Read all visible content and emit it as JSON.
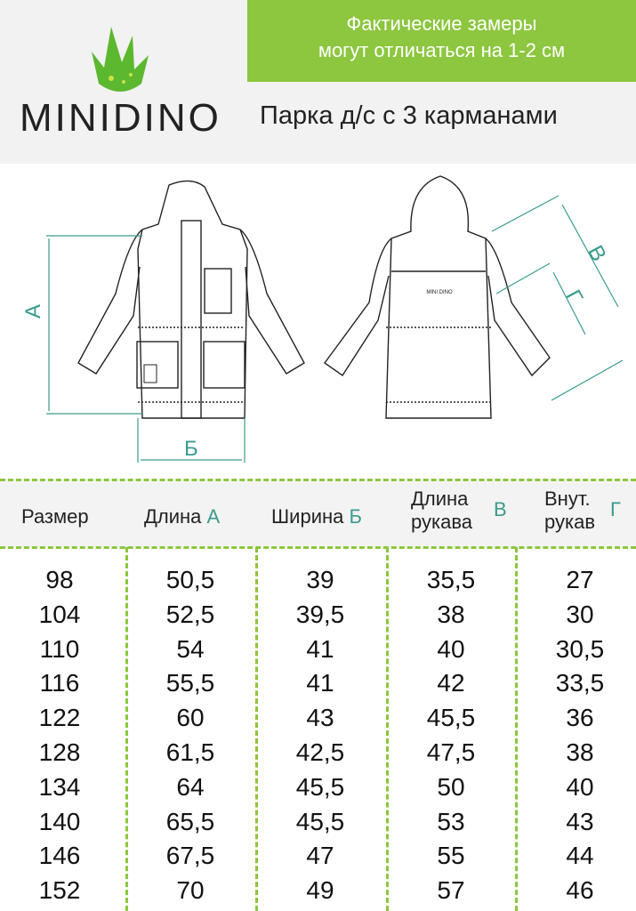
{
  "header": {
    "brand": "MINIDINO",
    "note_line1": "Фактические замеры",
    "note_line2": "могут отличаться на 1-2 см",
    "title": "Парка д/с с 3 карманами",
    "colors": {
      "green": "#8dc63f",
      "accent": "#3a9b8c"
    }
  },
  "diagram": {
    "label_a": "А",
    "label_b": "Б",
    "label_v": "В",
    "label_g": "Г",
    "patch_text": "MINI DINO"
  },
  "table": {
    "headers": [
      {
        "text": "Размер",
        "letter": ""
      },
      {
        "text": "Длина",
        "letter": "А"
      },
      {
        "text": "Ширина",
        "letter": "Б"
      },
      {
        "text1": "Длина",
        "text2": "рукава",
        "letter": "В"
      },
      {
        "text1": "Внут.",
        "text2": "рукав",
        "letter": "Г"
      }
    ],
    "rows": [
      [
        "98",
        "50,5",
        "39",
        "35,5",
        "27"
      ],
      [
        "104",
        "52,5",
        "39,5",
        "38",
        "30"
      ],
      [
        "110",
        "54",
        "41",
        "40",
        "30,5"
      ],
      [
        "116",
        "55,5",
        "41",
        "42",
        "33,5"
      ],
      [
        "122",
        "60",
        "43",
        "45,5",
        "36"
      ],
      [
        "128",
        "61,5",
        "42,5",
        "47,5",
        "38"
      ],
      [
        "134",
        "64",
        "45,5",
        "50",
        "40"
      ],
      [
        "140",
        "65,5",
        "45,5",
        "53",
        "43"
      ],
      [
        "146",
        "67,5",
        "47",
        "55",
        "44"
      ],
      [
        "152",
        "70",
        "49",
        "57",
        "46"
      ]
    ]
  }
}
